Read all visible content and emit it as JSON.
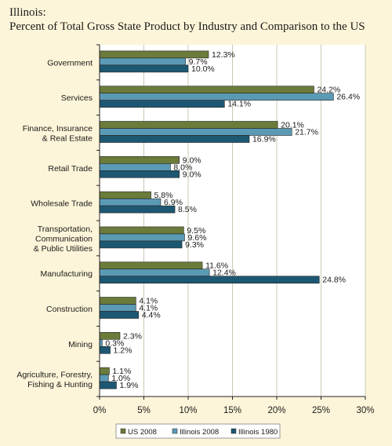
{
  "chart_data": {
    "type": "bar",
    "orientation": "horizontal",
    "title": "Illinois:",
    "subtitle": "Percent of Total Gross State Product by Industry and Comparison to the US",
    "categories": [
      [
        "Government"
      ],
      [
        "Services"
      ],
      [
        "Finance, Insurance",
        "& Real Estate"
      ],
      [
        "Retail Trade"
      ],
      [
        "Wholesale Trade"
      ],
      [
        "Transportation,",
        "Communication",
        "& Public Utilities"
      ],
      [
        "Manufacturing"
      ],
      [
        "Construction"
      ],
      [
        "Mining"
      ],
      [
        "Agriculture, Forestry,",
        "Fishing & Hunting"
      ]
    ],
    "series": [
      {
        "name": "US 2008",
        "color": "#6b7b3a",
        "values": [
          12.3,
          24.2,
          20.1,
          9.0,
          5.8,
          9.5,
          11.6,
          4.1,
          2.3,
          1.1
        ],
        "labels": [
          "12.3%",
          "24.2%",
          "20.1%",
          "9.0%",
          "5.8%",
          "9.5%",
          "11.6%",
          "4.1%",
          "2.3%",
          "1.1%"
        ]
      },
      {
        "name": "Illinois 2008",
        "color": "#5b9ab4",
        "values": [
          9.7,
          26.4,
          21.7,
          8.0,
          6.9,
          9.6,
          12.4,
          4.1,
          0.3,
          1.0
        ],
        "labels": [
          "9.7%",
          "26.4%",
          "21.7%",
          "8.0%",
          "6.9%",
          "9.6%",
          "12.4%",
          "4.1%",
          "0.3%",
          "1.0%"
        ]
      },
      {
        "name": "Illinois 1980",
        "color": "#1d5873",
        "values": [
          10.0,
          14.1,
          16.9,
          9.0,
          8.5,
          9.3,
          24.8,
          4.4,
          1.2,
          1.9
        ],
        "labels": [
          "10.0%",
          "14.1%",
          "16.9%",
          "9.0%",
          "8.5%",
          "9.3%",
          "24.8%",
          "4.4%",
          "1.2%",
          "1.9%"
        ]
      }
    ],
    "xlim": [
      0,
      30
    ],
    "xticks": [
      "0%",
      "5%",
      "10%",
      "15%",
      "20%",
      "25%",
      "30%"
    ],
    "grid": true,
    "legend_position": "bottom"
  }
}
